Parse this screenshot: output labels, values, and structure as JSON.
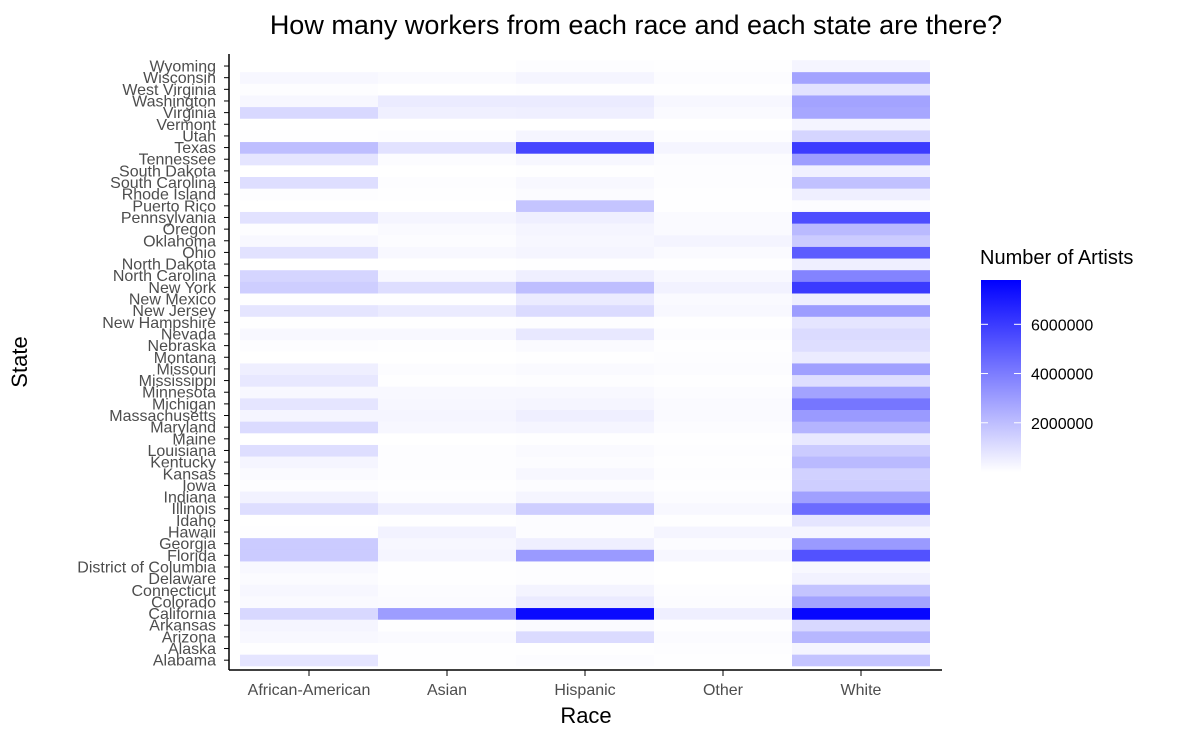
{
  "chart_data": {
    "type": "heatmap",
    "title": "How many workers from each race and each state are there?",
    "xlabel": "Race",
    "ylabel": "State",
    "x_categories": [
      "African-American",
      "Asian",
      "Hispanic",
      "Other",
      "White"
    ],
    "y_categories": [
      "Alabama",
      "Alaska",
      "Arizona",
      "Arkansas",
      "California",
      "Colorado",
      "Connecticut",
      "Delaware",
      "District of Columbia",
      "Florida",
      "Georgia",
      "Hawaii",
      "Idaho",
      "Illinois",
      "Indiana",
      "Iowa",
      "Kansas",
      "Kentucky",
      "Louisiana",
      "Maine",
      "Maryland",
      "Massachusetts",
      "Michigan",
      "Minnesota",
      "Mississippi",
      "Missouri",
      "Montana",
      "Nebraska",
      "Nevada",
      "New Hampshire",
      "New Jersey",
      "New Mexico",
      "New York",
      "North Carolina",
      "North Dakota",
      "Ohio",
      "Oklahoma",
      "Oregon",
      "Pennsylvania",
      "Puerto Rico",
      "Rhode Island",
      "South Carolina",
      "South Dakota",
      "Tennessee",
      "Texas",
      "Utah",
      "Vermont",
      "Virginia",
      "Washington",
      "West Virginia",
      "Wisconsin",
      "Wyoming"
    ],
    "values": {
      "Alabama": [
        800000,
        30000,
        100000,
        20000,
        1800000
      ],
      "Alaska": [
        20000,
        30000,
        30000,
        60000,
        300000
      ],
      "Arizona": [
        200000,
        150000,
        1100000,
        120000,
        2200000
      ],
      "Arkansas": [
        300000,
        30000,
        150000,
        30000,
        1200000
      ],
      "California": [
        1200000,
        3000000,
        7500000,
        500000,
        7600000
      ],
      "Colorado": [
        150000,
        120000,
        600000,
        100000,
        2800000
      ],
      "Connecticut": [
        250000,
        100000,
        350000,
        50000,
        1800000
      ],
      "Delaware": [
        120000,
        20000,
        50000,
        10000,
        400000
      ],
      "District of Columbia": [
        200000,
        20000,
        50000,
        10000,
        200000
      ],
      "Florida": [
        1600000,
        300000,
        3100000,
        250000,
        5300000
      ],
      "Georgia": [
        1600000,
        250000,
        500000,
        100000,
        3100000
      ],
      "Hawaii": [
        20000,
        400000,
        100000,
        300000,
        300000
      ],
      "Idaho": [
        10000,
        20000,
        100000,
        30000,
        800000
      ],
      "Illinois": [
        1000000,
        500000,
        1500000,
        200000,
        4500000
      ],
      "Indiana": [
        400000,
        100000,
        300000,
        80000,
        2900000
      ],
      "Iowa": [
        60000,
        40000,
        100000,
        30000,
        1500000
      ],
      "Kansas": [
        150000,
        60000,
        250000,
        50000,
        1400000
      ],
      "Kentucky": [
        300000,
        50000,
        100000,
        40000,
        2100000
      ],
      "Louisiana": [
        1000000,
        60000,
        150000,
        50000,
        1600000
      ],
      "Maine": [
        10000,
        10000,
        20000,
        20000,
        700000
      ],
      "Maryland": [
        1100000,
        250000,
        300000,
        100000,
        2300000
      ],
      "Massachusetts": [
        300000,
        300000,
        500000,
        150000,
        3100000
      ],
      "Michigan": [
        800000,
        250000,
        300000,
        150000,
        4200000
      ],
      "Minnesota": [
        200000,
        200000,
        200000,
        100000,
        2800000
      ],
      "Mississippi": [
        700000,
        20000,
        50000,
        20000,
        1000000
      ],
      "Missouri": [
        500000,
        100000,
        150000,
        80000,
        2900000
      ],
      "Montana": [
        10000,
        10000,
        30000,
        50000,
        600000
      ],
      "Nebraska": [
        60000,
        30000,
        150000,
        30000,
        1000000
      ],
      "Nevada": [
        200000,
        200000,
        700000,
        100000,
        1100000
      ],
      "New Hampshire": [
        20000,
        30000,
        50000,
        20000,
        800000
      ],
      "New Jersey": [
        800000,
        600000,
        1100000,
        200000,
        3000000
      ],
      "New Mexico": [
        30000,
        30000,
        600000,
        150000,
        500000
      ],
      "New York": [
        1500000,
        1000000,
        2000000,
        400000,
        6000000
      ],
      "North Carolina": [
        1300000,
        200000,
        500000,
        200000,
        3800000
      ],
      "North Dakota": [
        10000,
        10000,
        20000,
        30000,
        500000
      ],
      "Ohio": [
        900000,
        200000,
        300000,
        150000,
        5000000
      ],
      "Oklahoma": [
        200000,
        80000,
        250000,
        350000,
        1600000
      ],
      "Oregon": [
        50000,
        150000,
        300000,
        150000,
        2100000
      ],
      "Pennsylvania": [
        900000,
        300000,
        500000,
        150000,
        5400000
      ],
      "Puerto Rico": [
        10000,
        10000,
        1800000,
        30000,
        100000
      ],
      "Rhode Island": [
        50000,
        30000,
        120000,
        30000,
        500000
      ],
      "South Carolina": [
        1000000,
        60000,
        200000,
        50000,
        1900000
      ],
      "South Dakota": [
        10000,
        10000,
        20000,
        60000,
        450000
      ],
      "Tennessee": [
        800000,
        100000,
        250000,
        80000,
        3000000
      ],
      "Texas": [
        2000000,
        900000,
        5700000,
        300000,
        6000000
      ],
      "Utah": [
        20000,
        50000,
        300000,
        60000,
        1300000
      ],
      "Vermont": [
        5000,
        5000,
        10000,
        10000,
        350000
      ],
      "Virginia": [
        1200000,
        450000,
        500000,
        150000,
        2700000
      ],
      "Washington": [
        250000,
        600000,
        600000,
        250000,
        2800000
      ],
      "West Virginia": [
        60000,
        10000,
        20000,
        20000,
        900000
      ],
      "Wisconsin": [
        250000,
        150000,
        300000,
        80000,
        2800000
      ],
      "Wyoming": [
        5000,
        5000,
        50000,
        20000,
        300000
      ]
    },
    "legend": {
      "title": "Number of Artists",
      "placement": "right",
      "ticks": [
        2000000,
        4000000,
        6000000
      ],
      "tick_labels": [
        "2000000",
        "4000000",
        "6000000"
      ],
      "range": [
        0,
        7800000
      ]
    },
    "color_low": "#ffffff",
    "color_high": "#0000ff",
    "grid": false
  }
}
